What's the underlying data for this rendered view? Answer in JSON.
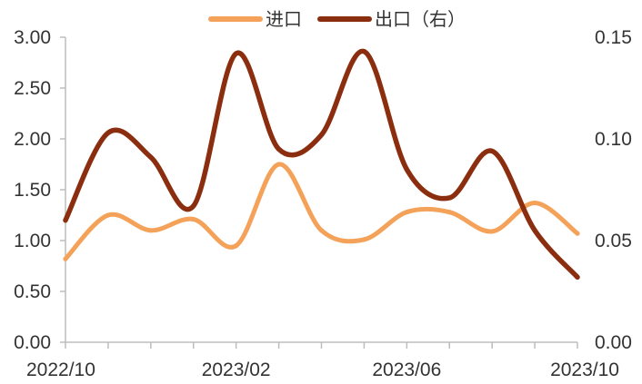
{
  "chart_data": {
    "type": "line",
    "x": [
      "2022/10",
      "2022/11",
      "2022/12",
      "2023/01",
      "2023/02",
      "2023/03",
      "2023/04",
      "2023/05",
      "2023/06",
      "2023/07",
      "2023/08",
      "2023/09",
      "2023/10"
    ],
    "x_tick_labels": [
      "2022/10",
      "2023/02",
      "2023/06",
      "2023/10"
    ],
    "series": [
      {
        "name": "进口",
        "axis": "left",
        "color": "#F4A259",
        "values": [
          0.82,
          1.25,
          1.1,
          1.21,
          0.95,
          1.75,
          1.1,
          1.01,
          1.28,
          1.28,
          1.09,
          1.37,
          1.07
        ]
      },
      {
        "name": "出口（右）",
        "axis": "right",
        "color": "#8B2E0F",
        "values": [
          0.06,
          0.103,
          0.091,
          0.067,
          0.142,
          0.095,
          0.102,
          0.143,
          0.085,
          0.071,
          0.094,
          0.055,
          0.032
        ]
      }
    ],
    "y_left": {
      "range": [
        0,
        3
      ],
      "ticks": [
        "0.00",
        "0.50",
        "1.00",
        "1.50",
        "2.00",
        "2.50",
        "3.00"
      ]
    },
    "y_right": {
      "range": [
        0,
        0.15
      ],
      "ticks": [
        "0.00",
        "0.05",
        "0.10",
        "0.15"
      ]
    },
    "grid": false,
    "legend_position": "top-center"
  }
}
